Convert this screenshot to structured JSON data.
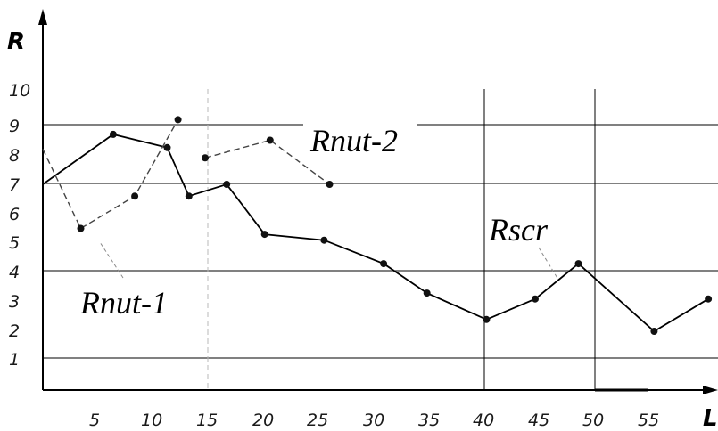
{
  "chart_data": {
    "type": "line",
    "xlabel": "L",
    "ylabel": "R",
    "x_ticks": [
      "5",
      "10",
      "15",
      "20",
      "25",
      "30",
      "35",
      "40",
      "45",
      "50",
      "55"
    ],
    "y_ticks": [
      "1",
      "2",
      "3",
      "4",
      "5",
      "6",
      "7",
      "8",
      "9",
      "10"
    ],
    "xlim": [
      0,
      61
    ],
    "ylim": [
      0,
      10
    ],
    "grid": "horizontal at 1, 4, 7, 9; vertical at 40, 50",
    "series": [
      {
        "name": "Rscr",
        "style": "solid",
        "x": [
          0,
          6.5,
          11.5,
          13.5,
          17,
          20.5,
          26,
          31.5,
          35.5,
          41,
          45.5,
          49.5,
          56.5,
          61.5
        ],
        "y": [
          7.0,
          8.7,
          8.25,
          6.6,
          7.0,
          5.3,
          5.1,
          4.3,
          3.3,
          2.4,
          3.1,
          4.3,
          2.0,
          3.1
        ]
      },
      {
        "name": "Rnut-1",
        "style": "dashed",
        "x": [
          0,
          3.5,
          8.5,
          12.5
        ],
        "y": [
          8.2,
          5.5,
          6.6,
          9.2
        ]
      },
      {
        "name": "Rnut-2",
        "style": "dashed",
        "x": [
          15,
          21,
          26.5
        ],
        "y": [
          7.9,
          8.5,
          7.0
        ]
      }
    ]
  }
}
